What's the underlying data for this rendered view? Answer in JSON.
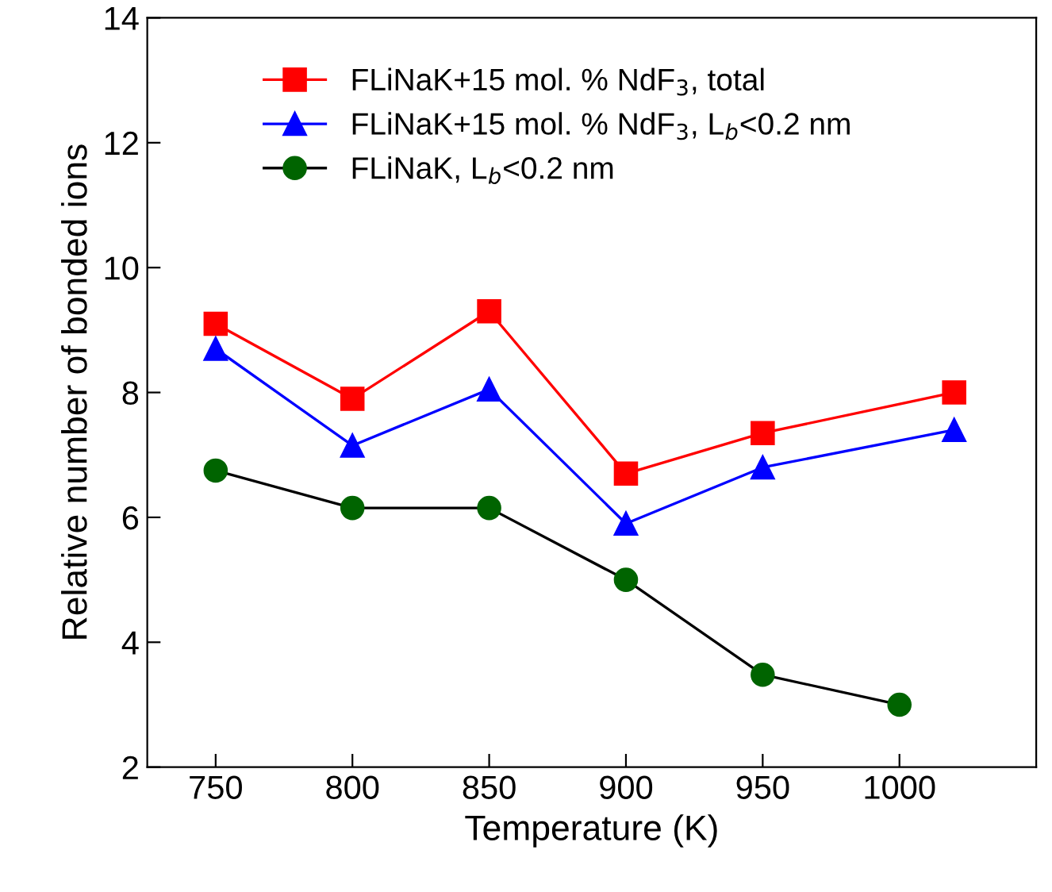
{
  "chart_data": {
    "type": "line",
    "xlabel": "Temperature (K)",
    "ylabel": "Relative number of bonded ions",
    "xlim": [
      725,
      1050
    ],
    "xticks": [
      750,
      800,
      850,
      900,
      950,
      1000
    ],
    "ylim": [
      2,
      14
    ],
    "yticks": [
      2,
      4,
      6,
      8,
      10,
      12,
      14
    ],
    "grid": false,
    "legend": "top left",
    "line_style": "solid",
    "series": [
      {
        "name": "FLiNaK+15 mol. % NdF$_{3}$, total",
        "color": "#ff0000",
        "marker": "square",
        "x": [
          750,
          800,
          850,
          900,
          950,
          1020
        ],
        "values": [
          9.1,
          7.9,
          9.3,
          6.7,
          7.35,
          8.0
        ]
      },
      {
        "name": "FLiNaK+15 mol. % NdF$_{3}$, L$_{b}$<0.2 nm",
        "color": "#0000ff",
        "marker": "triangle",
        "x": [
          750,
          800,
          850,
          900,
          950,
          1020
        ],
        "values": [
          8.7,
          7.15,
          8.05,
          5.9,
          6.8,
          7.4
        ]
      },
      {
        "name": "FLiNaK, L$_{b}$<0.2 nm",
        "color": "#000000",
        "colors": [
          "#006400",
          "#006400",
          "#006400",
          "#006400",
          "#006400",
          "#006400"
        ],
        "marker": "circle",
        "x": [
          750,
          800,
          850,
          900,
          950,
          1000
        ],
        "values": [
          6.75,
          6.15,
          6.15,
          5.0,
          3.48,
          3.0
        ]
      }
    ]
  }
}
